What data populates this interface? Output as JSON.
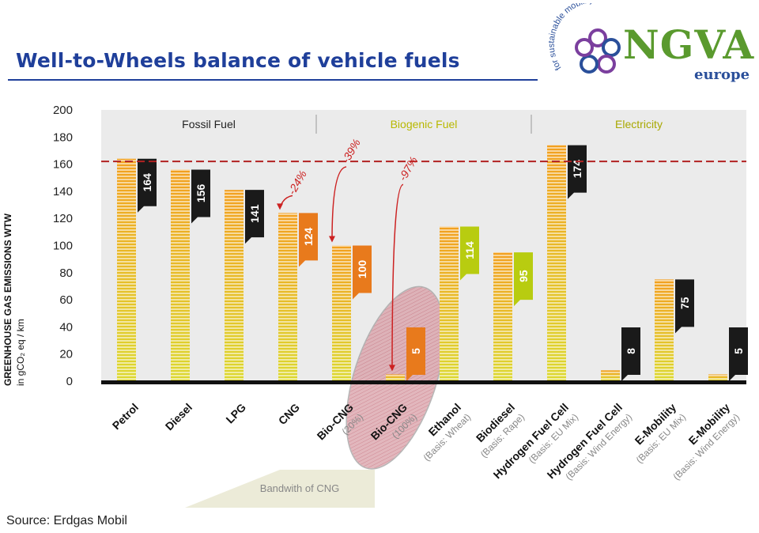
{
  "header": {
    "title": "Well-to-Wheels balance of vehicle fuels",
    "logo": {
      "arc_text": "for sustainable mobility",
      "name": "NGVA",
      "sub": "europe",
      "colors": [
        "#7b3f9e",
        "#2a4f9a",
        "#5a9a2e"
      ]
    }
  },
  "source": "Source: Erdgas Mobil",
  "chart_data": {
    "type": "bar",
    "ylabel_line1": "GREENHOUSE GAS EMISSIONS WTW",
    "ylabel_line2": "in gCO₂ eq / km",
    "ylim": [
      0,
      200
    ],
    "yticks": [
      0,
      20,
      40,
      60,
      80,
      100,
      120,
      140,
      160,
      180,
      200
    ],
    "reference_line": 162,
    "groups": [
      {
        "label": "Fossil Fuel",
        "color": "#222222",
        "span": [
          0,
          3
        ]
      },
      {
        "label": "Biogenic Fuel",
        "color": "#b8b800",
        "span": [
          4,
          7
        ]
      },
      {
        "label": "Electricity",
        "color": "#a8a800",
        "span": [
          8,
          11
        ]
      }
    ],
    "categories": [
      {
        "name": "Petrol",
        "sub": "",
        "value": 164,
        "label": "164",
        "label_color": "#1a1a1a"
      },
      {
        "name": "Diesel",
        "sub": "",
        "value": 156,
        "label": "156",
        "label_color": "#1a1a1a"
      },
      {
        "name": "LPG",
        "sub": "",
        "value": 141,
        "label": "141",
        "label_color": "#1a1a1a"
      },
      {
        "name": "CNG",
        "sub": "",
        "value": 124,
        "label": "124",
        "label_color": "#e87a1c"
      },
      {
        "name": "Bio-CNG",
        "sub": "(20%)",
        "value": 100,
        "label": "100",
        "label_color": "#e87a1c"
      },
      {
        "name": "Bio-CNG",
        "sub": "(100%)",
        "value": 5,
        "label": "5",
        "label_color": "#e87a1c"
      },
      {
        "name": "Ethanol",
        "sub": "(Basis: Wheat)",
        "value": 114,
        "label": "114",
        "label_color": "#b8cc10"
      },
      {
        "name": "Biodiesel",
        "sub": "(Basis: Rape)",
        "value": 95,
        "label": "95",
        "label_color": "#b8cc10"
      },
      {
        "name": "Hydrogen Fuel Cell",
        "sub": "(Basis: EU Mix)",
        "value": 174,
        "label": "174",
        "label_color": "#1a1a1a"
      },
      {
        "name": "Hydrogen Fuel Cell",
        "sub": "(Basis: Wind Energy)",
        "value": 8,
        "label": "8",
        "label_color": "#1a1a1a"
      },
      {
        "name": "E-Mobility",
        "sub": "(Basis: EU Mix)",
        "value": 75,
        "label": "75",
        "label_color": "#1a1a1a"
      },
      {
        "name": "E-Mobility",
        "sub": "(Basis: Wind Energy)",
        "value": 5,
        "label": "5",
        "label_color": "#1a1a1a"
      }
    ],
    "annotations": [
      {
        "text": "-24%",
        "target": 3
      },
      {
        "text": "-39%",
        "target": 4
      },
      {
        "text": "-97%",
        "target": 5
      }
    ],
    "band_label": "Bandwith of CNG",
    "bar_colors": {
      "top": "#f2a020",
      "bottom": "#dcd830"
    },
    "highlight_color": "#cc3344"
  }
}
